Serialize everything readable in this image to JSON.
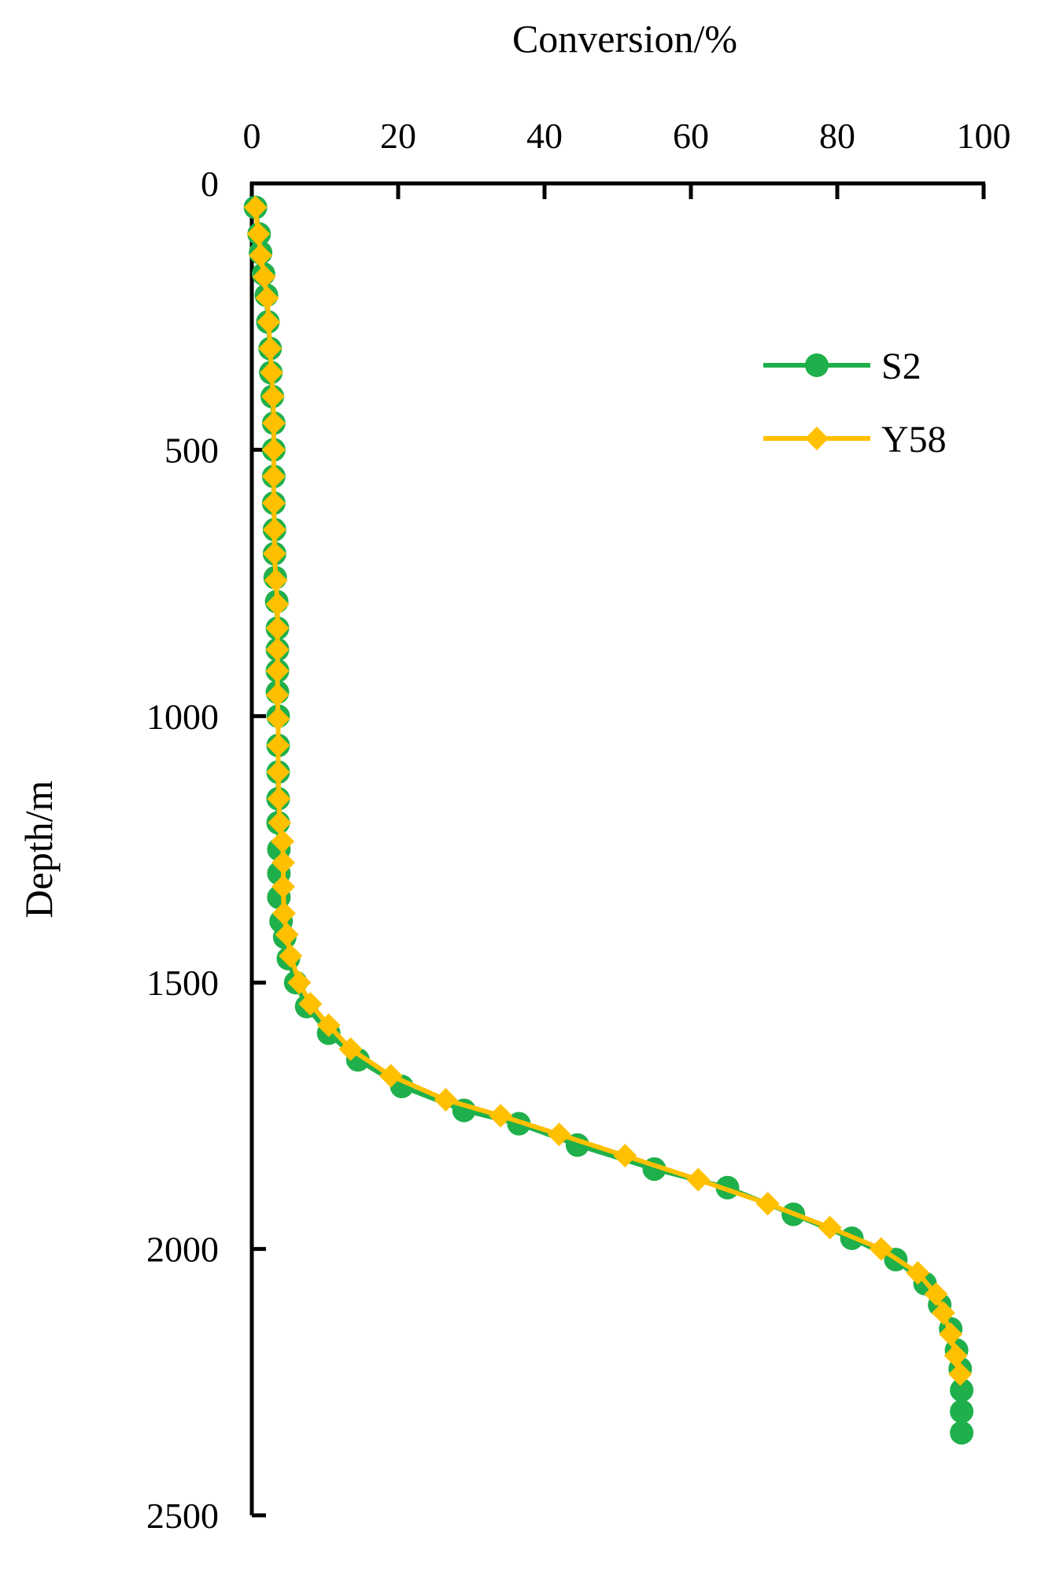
{
  "chart_data": {
    "type": "line",
    "xlabel": "Conversion/%",
    "ylabel": "Depth/m",
    "xlim": [
      0,
      100
    ],
    "ylim": [
      0,
      2500
    ],
    "y_inverted": true,
    "x_axis_position": "top",
    "grid": false,
    "legend_position": "top-right",
    "x_ticks": [
      "0",
      "20",
      "40",
      "60",
      "80",
      "100"
    ],
    "y_ticks": [
      "0",
      "500",
      "1000",
      "1500",
      "2000",
      "2500"
    ],
    "series": [
      {
        "name": "S2",
        "color": "#1fb04b",
        "marker": "circle",
        "points": [
          [
            0.5,
            45
          ],
          [
            1.0,
            95
          ],
          [
            1.2,
            130
          ],
          [
            1.6,
            170
          ],
          [
            2.0,
            210
          ],
          [
            2.2,
            260
          ],
          [
            2.5,
            310
          ],
          [
            2.6,
            355
          ],
          [
            2.8,
            400
          ],
          [
            3.0,
            450
          ],
          [
            3.0,
            500
          ],
          [
            3.0,
            550
          ],
          [
            3.0,
            600
          ],
          [
            3.1,
            650
          ],
          [
            3.1,
            695
          ],
          [
            3.2,
            740
          ],
          [
            3.4,
            785
          ],
          [
            3.5,
            835
          ],
          [
            3.5,
            875
          ],
          [
            3.5,
            915
          ],
          [
            3.5,
            955
          ],
          [
            3.6,
            1000
          ],
          [
            3.6,
            1055
          ],
          [
            3.6,
            1105
          ],
          [
            3.6,
            1155
          ],
          [
            3.6,
            1200
          ],
          [
            3.7,
            1250
          ],
          [
            3.7,
            1295
          ],
          [
            3.7,
            1340
          ],
          [
            4.0,
            1385
          ],
          [
            4.5,
            1415
          ],
          [
            5.0,
            1455
          ],
          [
            6.0,
            1500
          ],
          [
            7.5,
            1545
          ],
          [
            10.5,
            1595
          ],
          [
            14.5,
            1645
          ],
          [
            20.5,
            1695
          ],
          [
            29.0,
            1740
          ],
          [
            36.5,
            1765
          ],
          [
            44.5,
            1805
          ],
          [
            55.0,
            1850
          ],
          [
            65.0,
            1885
          ],
          [
            74.0,
            1935
          ],
          [
            82.0,
            1980
          ],
          [
            88.0,
            2020
          ],
          [
            92.0,
            2065
          ],
          [
            94.0,
            2105
          ],
          [
            95.5,
            2150
          ],
          [
            96.3,
            2190
          ],
          [
            96.8,
            2225
          ],
          [
            97.0,
            2265
          ],
          [
            97.0,
            2305
          ],
          [
            97.0,
            2345
          ]
        ]
      },
      {
        "name": "Y58",
        "color": "#ffc000",
        "marker": "diamond",
        "points": [
          [
            0.5,
            45
          ],
          [
            0.9,
            95
          ],
          [
            1.2,
            135
          ],
          [
            1.7,
            175
          ],
          [
            2.1,
            215
          ],
          [
            2.3,
            260
          ],
          [
            2.5,
            310
          ],
          [
            2.7,
            355
          ],
          [
            2.9,
            400
          ],
          [
            3.0,
            450
          ],
          [
            3.0,
            500
          ],
          [
            3.0,
            550
          ],
          [
            3.0,
            600
          ],
          [
            3.1,
            650
          ],
          [
            3.1,
            695
          ],
          [
            3.3,
            745
          ],
          [
            3.5,
            790
          ],
          [
            3.5,
            835
          ],
          [
            3.5,
            875
          ],
          [
            3.5,
            915
          ],
          [
            3.5,
            960
          ],
          [
            3.6,
            1005
          ],
          [
            3.6,
            1055
          ],
          [
            3.6,
            1105
          ],
          [
            3.7,
            1155
          ],
          [
            3.8,
            1200
          ],
          [
            4.2,
            1235
          ],
          [
            4.3,
            1275
          ],
          [
            4.3,
            1320
          ],
          [
            4.4,
            1370
          ],
          [
            4.8,
            1410
          ],
          [
            5.3,
            1450
          ],
          [
            6.5,
            1500
          ],
          [
            8.0,
            1540
          ],
          [
            10.5,
            1580
          ],
          [
            13.5,
            1625
          ],
          [
            19.0,
            1675
          ],
          [
            26.5,
            1720
          ],
          [
            34.0,
            1750
          ],
          [
            42.0,
            1785
          ],
          [
            51.0,
            1825
          ],
          [
            61.0,
            1870
          ],
          [
            70.5,
            1915
          ],
          [
            79.0,
            1960
          ],
          [
            86.0,
            2000
          ],
          [
            91.0,
            2045
          ],
          [
            93.5,
            2085
          ],
          [
            94.5,
            2120
          ],
          [
            95.5,
            2160
          ],
          [
            96.2,
            2200
          ],
          [
            96.8,
            2235
          ]
        ]
      }
    ]
  }
}
